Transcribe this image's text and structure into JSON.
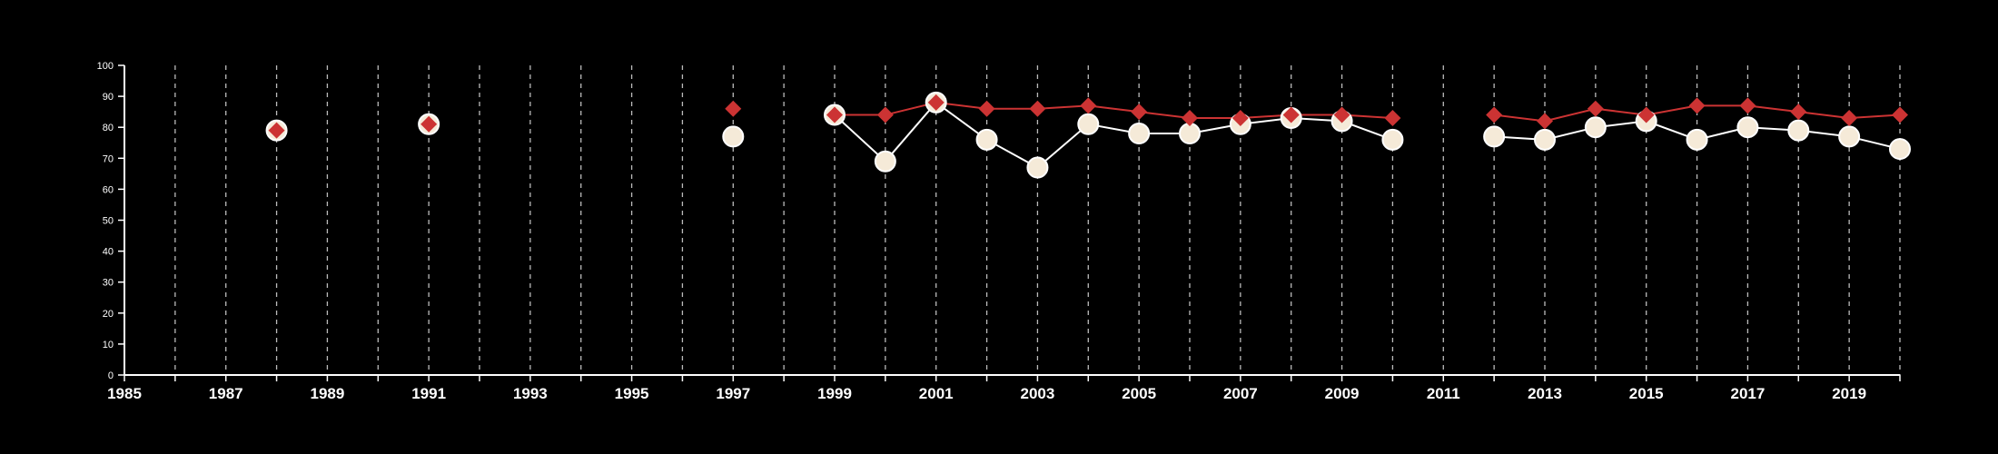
{
  "colors": {
    "background": "#000000",
    "axis": "#ffffff",
    "grid": "#bbbbbb",
    "series_a_marker": "#f5ead8",
    "series_a_line": "#ffffff",
    "series_b": "#cc3333"
  },
  "chart_data": {
    "type": "line",
    "xlim": [
      1985,
      2020
    ],
    "ylim": [
      0,
      100
    ],
    "grid": {
      "vertical": "dashed",
      "horizontal": false
    },
    "x_ticks": [
      1985,
      1986,
      1987,
      1988,
      1989,
      1990,
      1991,
      1992,
      1993,
      1994,
      1995,
      1996,
      1997,
      1998,
      1999,
      2000,
      2001,
      2002,
      2003,
      2004,
      2005,
      2006,
      2007,
      2008,
      2009,
      2010,
      2011,
      2012,
      2013,
      2014,
      2015,
      2016,
      2017,
      2018,
      2019,
      2020
    ],
    "x_tick_labels": [
      "1985",
      "1987",
      "1989",
      "1991",
      "1993",
      "1995",
      "1997",
      "1999",
      "2001",
      "2003",
      "2005",
      "2007",
      "2009",
      "2011",
      "2013",
      "2015",
      "2017",
      "2019"
    ],
    "y_ticks": [
      0,
      10,
      20,
      30,
      40,
      50,
      60,
      70,
      80,
      90,
      100
    ],
    "y_tick_labels": [
      "0",
      "10",
      "20",
      "30",
      "40",
      "50",
      "60",
      "70",
      "80",
      "90",
      "100"
    ],
    "series": [
      {
        "marker": "circle",
        "color": "#f5ead8",
        "segments": [
          [
            1999,
            2010
          ],
          [
            2012,
            2020
          ]
        ],
        "points": [
          [
            1988,
            79
          ],
          [
            1991,
            81
          ],
          [
            1997,
            77
          ],
          [
            1999,
            84
          ],
          [
            2000,
            69
          ],
          [
            2001,
            88
          ],
          [
            2002,
            76
          ],
          [
            2003,
            67
          ],
          [
            2004,
            81
          ],
          [
            2005,
            78
          ],
          [
            2006,
            78
          ],
          [
            2007,
            81
          ],
          [
            2008,
            83
          ],
          [
            2009,
            82
          ],
          [
            2010,
            76
          ],
          [
            2012,
            77
          ],
          [
            2013,
            76
          ],
          [
            2014,
            80
          ],
          [
            2015,
            82
          ],
          [
            2016,
            76
          ],
          [
            2017,
            80
          ],
          [
            2018,
            79
          ],
          [
            2019,
            77
          ],
          [
            2020,
            73
          ]
        ]
      },
      {
        "marker": "diamond",
        "color": "#cc3333",
        "segments": [
          [
            1999,
            2010
          ],
          [
            2012,
            2020
          ]
        ],
        "points": [
          [
            1988,
            79
          ],
          [
            1991,
            81
          ],
          [
            1997,
            86
          ],
          [
            1999,
            84
          ],
          [
            2000,
            84
          ],
          [
            2001,
            88
          ],
          [
            2002,
            86
          ],
          [
            2003,
            86
          ],
          [
            2004,
            87
          ],
          [
            2005,
            85
          ],
          [
            2006,
            83
          ],
          [
            2007,
            83
          ],
          [
            2008,
            84
          ],
          [
            2009,
            84
          ],
          [
            2010,
            83
          ],
          [
            2012,
            84
          ],
          [
            2013,
            82
          ],
          [
            2014,
            86
          ],
          [
            2015,
            84
          ],
          [
            2016,
            87
          ],
          [
            2017,
            87
          ],
          [
            2018,
            85
          ],
          [
            2019,
            83
          ],
          [
            2020,
            84
          ]
        ]
      }
    ]
  }
}
